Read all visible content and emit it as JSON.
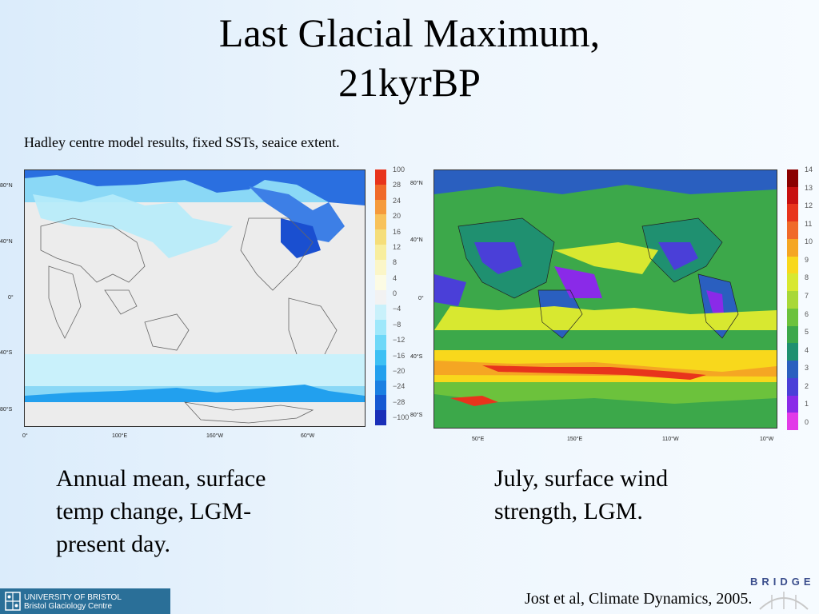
{
  "slide": {
    "title_line1": "Last Glacial Maximum,",
    "title_line2": "21kyrBP",
    "subtitle": "Hadley centre model results, fixed SSTs, seaice extent."
  },
  "left_map": {
    "y_labels": [
      "80°N",
      "40°N",
      "0°",
      "40°S",
      "80°S"
    ],
    "x_labels": [
      "0°",
      "100°E",
      "160°W",
      "60°W"
    ],
    "colorbar_ticks": [
      "100",
      "28",
      "24",
      "20",
      "16",
      "12",
      "8",
      "4",
      "0",
      "−4",
      "−8",
      "−12",
      "−16",
      "−20",
      "−24",
      "−28",
      "−100"
    ],
    "colorbar_colors": [
      "#e8341c",
      "#f06a2a",
      "#f59a3c",
      "#f8c25a",
      "#f5de7a",
      "#f8ee9e",
      "#fbf6c8",
      "#fcfbe4",
      "#f2f2f2",
      "#c9f1fb",
      "#9fe8fb",
      "#6ed8f8",
      "#3dc0f4",
      "#22a0ee",
      "#1a7fe2",
      "#1558d2",
      "#1a2fb8"
    ],
    "caption_lines": [
      "Annual mean, surface",
      "temp change, LGM-",
      "present day."
    ]
  },
  "right_map": {
    "y_labels": [
      "80°N",
      "40°N",
      "0°",
      "40°S",
      "80°S"
    ],
    "x_labels": [
      "50°E",
      "150°E",
      "110°W",
      "10°W"
    ],
    "colorbar_ticks": [
      "14",
      "13",
      "12",
      "11",
      "10",
      "9",
      "8",
      "7",
      "6",
      "5",
      "4",
      "3",
      "2",
      "1",
      "0"
    ],
    "colorbar_colors": [
      "#8b0000",
      "#c81010",
      "#e8341c",
      "#f06a2a",
      "#f5a623",
      "#f8d81c",
      "#d8e830",
      "#a8d838",
      "#6cc23c",
      "#3ca84a",
      "#1f9070",
      "#2a5fbf",
      "#4a3fd8",
      "#8a2ae8",
      "#e23ae8"
    ],
    "caption_lines": [
      "July, surface wind",
      "strength, LGM."
    ]
  },
  "citation": "Jost et al, Climate Dynamics, 2005.",
  "footer": {
    "org_line1": "UNIVERSITY OF BRISTOL",
    "org_line2": "Bristol Glaciology Centre",
    "bridge": "BRIDGE"
  }
}
